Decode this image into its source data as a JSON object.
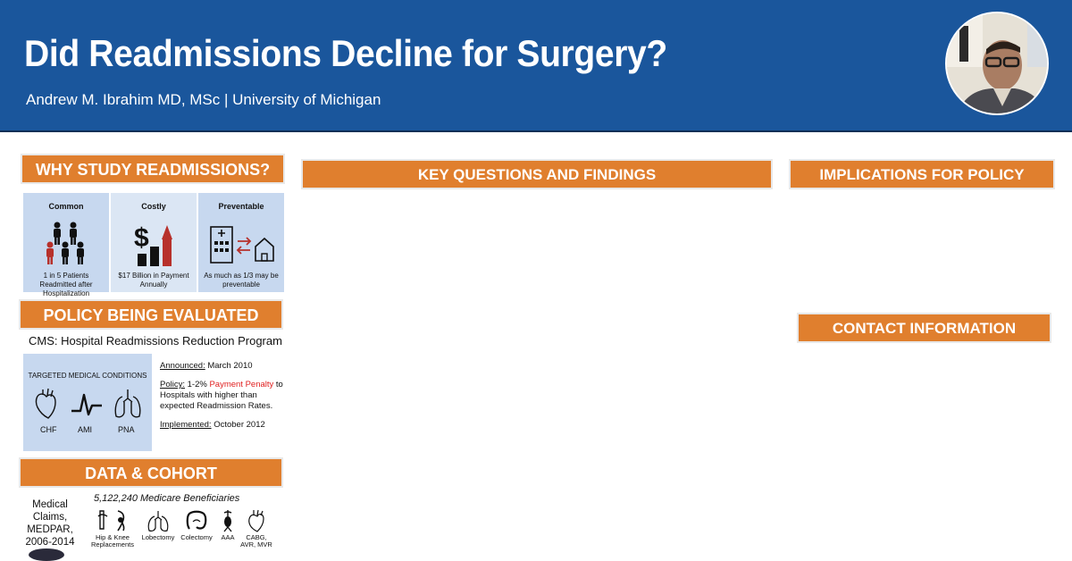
{
  "header": {
    "title": "Did Readmissions Decline for Surgery?",
    "author": "Andrew M. Ibrahim MD, MSc | University of Michigan"
  },
  "sections": {
    "why": "WHY STUDY READMISSIONS?",
    "key": "KEY QUESTIONS AND FINDINGS",
    "implications": "IMPLICATIONS FOR POLICY",
    "policy": "POLICY BEING EVALUATED",
    "data": "DATA & COHORT",
    "contact": "CONTACT INFORMATION"
  },
  "why": [
    {
      "heading": "Common",
      "caption": "1 in 5 Patients Readmitted after Hospitalization",
      "icon": "people-icon"
    },
    {
      "heading": "Costly",
      "caption": "$17 Billion in Payment Annually",
      "icon": "dollar-chart-icon"
    },
    {
      "heading": "Preventable",
      "caption": "As much as 1/3 may be preventable",
      "icon": "hospital-home-icon"
    }
  ],
  "policy": {
    "program": "CMS: Hospital Readmissions Reduction Program",
    "conditions_heading": "TARGETED MEDICAL CONDITIONS",
    "conditions": [
      "CHF",
      "AMI",
      "PNA"
    ],
    "announced_label": "Announced:",
    "announced": " March 2010",
    "policy_label": "Policy:",
    "policy_pre": " 1-2% ",
    "policy_penalty": "Payment Penalty",
    "policy_post": " to Hospitals with higher than expected Readmission Rates.",
    "implemented_label": "Implemented:",
    "implemented": " October 2012"
  },
  "data": {
    "source": "Medical Claims, MEDPAR, 2006-2014",
    "beneficiaries": "5,122,240 Medicare Beneficiaries",
    "procedures": [
      "Hip & Knee Replacements",
      "Lobectomy",
      "Colectomy",
      "AAA",
      "CABG, AVR, MVR"
    ]
  },
  "colors": {
    "header": "#1a569c",
    "banner": "#e07f2e",
    "panel": "#c7d8ef",
    "penalty": "#e02020"
  }
}
